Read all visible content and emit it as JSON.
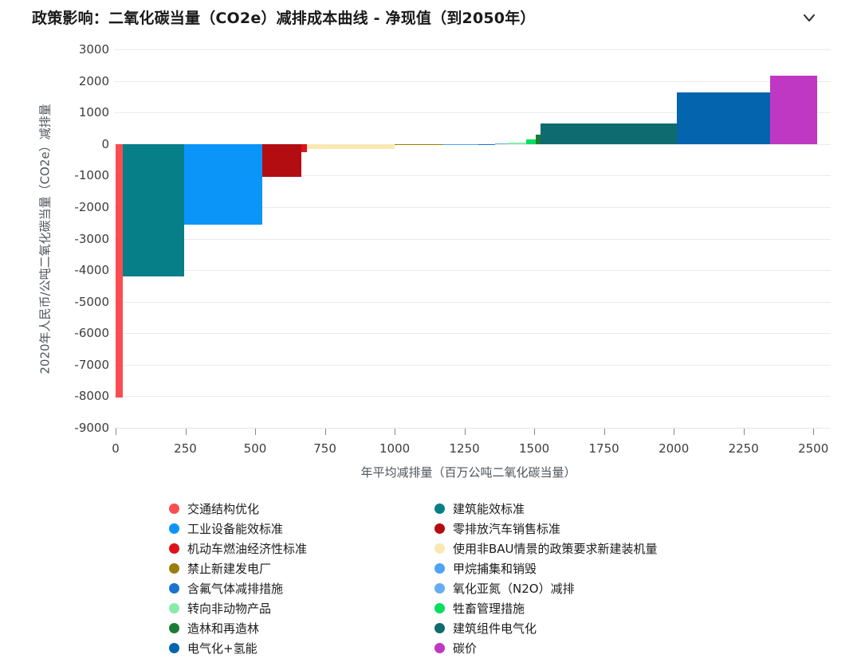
{
  "header": {
    "title": "政策影响：二氧化碳当量（CO2e）减排成本曲线 - 净现值（到2050年）"
  },
  "chart_data": {
    "type": "bar",
    "subtype": "marginal-abatement-cost-curve",
    "title": "政策影响：二氧化碳当量（CO2e）减排成本曲线 - 净现值（到2050年）",
    "xlabel": "年平均减排量（百万公吨二氧化碳当量）",
    "ylabel": "2020年人民币/公吨二氧化碳当量（CO2e）减排量",
    "xlim": [
      0,
      2528
    ],
    "ylim": [
      -9000,
      3000
    ],
    "x_ticks": [
      0,
      250,
      500,
      750,
      1000,
      1250,
      1500,
      1750,
      2000,
      2250,
      2500
    ],
    "y_ticks": [
      3000,
      2000,
      1000,
      0,
      -1000,
      -2000,
      -3000,
      -4000,
      -5000,
      -6000,
      -7000,
      -8000,
      -9000
    ],
    "grid": true,
    "legend_position": "bottom",
    "series": [
      {
        "name": "交通结构优化",
        "color": "#F94D52",
        "x_start": 0,
        "x_end": 25,
        "value": -8050
      },
      {
        "name": "建筑能效标准",
        "color": "#067F89",
        "x_start": 25,
        "x_end": 245,
        "value": -4200
      },
      {
        "name": "工业设备能效标准",
        "color": "#0B95F8",
        "x_start": 245,
        "x_end": 525,
        "value": -2550
      },
      {
        "name": "零排放汽车销售标准",
        "color": "#B30D12",
        "x_start": 525,
        "x_end": 665,
        "value": -1030
      },
      {
        "name": "机动车燃油经济性标准",
        "color": "#DE1219",
        "x_start": 665,
        "x_end": 685,
        "value": -250
      },
      {
        "name": "使用非BAU情景的政策要求新建装机量",
        "color": "#FAE8B4",
        "x_start": 685,
        "x_end": 1000,
        "value": -150
      },
      {
        "name": "禁止新建发电厂",
        "color": "#9C7D0C",
        "x_start": 1000,
        "x_end": 1175,
        "value": -40
      },
      {
        "name": "甲烷捕集和销毁",
        "color": "#4DA3F5",
        "x_start": 1175,
        "x_end": 1300,
        "value": -15
      },
      {
        "name": "含氟气体减排措施",
        "color": "#1B72D0",
        "x_start": 1300,
        "x_end": 1360,
        "value": -5
      },
      {
        "name": "氧化亚氮（N2O）减排",
        "color": "#66ACF2",
        "x_start": 1360,
        "x_end": 1405,
        "value": 10
      },
      {
        "name": "转向非动物产品",
        "color": "#86ECA8",
        "x_start": 1405,
        "x_end": 1470,
        "value": 40
      },
      {
        "name": "牲畜管理措施",
        "color": "#06DE5F",
        "x_start": 1470,
        "x_end": 1505,
        "value": 150
      },
      {
        "name": "造林和再造林",
        "color": "#1B7C37",
        "x_start": 1505,
        "x_end": 1522,
        "value": 290
      },
      {
        "name": "建筑组件电气化",
        "color": "#0E6B70",
        "x_start": 1522,
        "x_end": 2010,
        "value": 640
      },
      {
        "name": "电气化+氢能",
        "color": "#0564AE",
        "x_start": 2010,
        "x_end": 2345,
        "value": 1640
      },
      {
        "name": "碳价",
        "color": "#BE38C3",
        "x_start": 2345,
        "x_end": 2515,
        "value": 2160
      }
    ]
  },
  "legend": {
    "columns": 2,
    "items": [
      {
        "label": "交通结构优化",
        "color": "#F94D52"
      },
      {
        "label": "建筑能效标准",
        "color": "#067F89"
      },
      {
        "label": "工业设备能效标准",
        "color": "#0B95F8"
      },
      {
        "label": "零排放汽车销售标准",
        "color": "#B30D12"
      },
      {
        "label": "机动车燃油经济性标准",
        "color": "#DE1219"
      },
      {
        "label": "使用非BAU情景的政策要求新建装机量",
        "color": "#FAE8B4"
      },
      {
        "label": "禁止新建发电厂",
        "color": "#9C7D0C"
      },
      {
        "label": "甲烷捕集和销毁",
        "color": "#4DA3F5"
      },
      {
        "label": "含氟气体减排措施",
        "color": "#1B72D0"
      },
      {
        "label": "氧化亚氮（N2O）减排",
        "color": "#66ACF2"
      },
      {
        "label": "转向非动物产品",
        "color": "#86ECA8"
      },
      {
        "label": "牲畜管理措施",
        "color": "#06DE5F"
      },
      {
        "label": "造林和再造林",
        "color": "#1B7C37"
      },
      {
        "label": "建筑组件电气化",
        "color": "#0E6B70"
      },
      {
        "label": "电气化+氢能",
        "color": "#0564AE"
      },
      {
        "label": "碳价",
        "color": "#BE38C3"
      }
    ]
  }
}
